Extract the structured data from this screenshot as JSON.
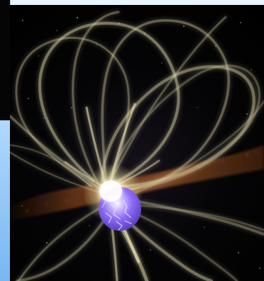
{
  "scene": {
    "subject": "magnetar",
    "palette": {
      "sky": "#9fd1ff",
      "frame": "#050505",
      "space": "#000000",
      "field_lines": "#d8d0a2",
      "dust": "#b55a1c",
      "core": "#8d6cff",
      "glow": "#fffdf4"
    }
  }
}
